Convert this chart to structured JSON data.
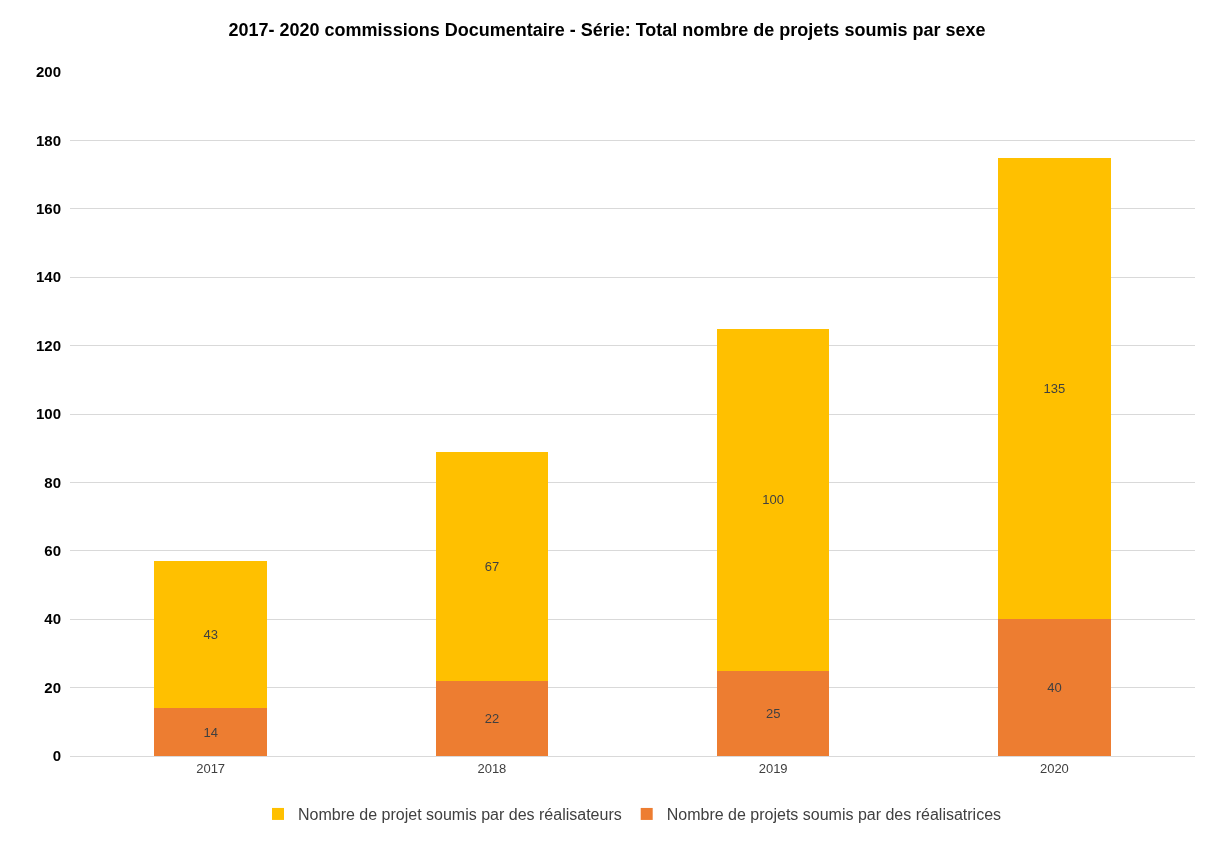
{
  "chart_data": {
    "type": "bar",
    "title": "2017- 2020 commissions Documentaire - Série: Total nombre de projets soumis par sexe",
    "categories": [
      "2017",
      "2018",
      "2019",
      "2020"
    ],
    "series": [
      {
        "name": "Nombre de projets soumis par des réalisatrices",
        "color": "#ed7d31",
        "values": [
          14,
          22,
          25,
          40
        ]
      },
      {
        "name": "Nombre de projet soumis par des réalisateurs",
        "color": "#ffc000",
        "values": [
          43,
          67,
          100,
          135
        ]
      }
    ],
    "stacked": true,
    "ylim": [
      0,
      200
    ],
    "yticks": [
      0,
      20,
      40,
      60,
      80,
      100,
      120,
      140,
      160,
      180,
      200
    ],
    "grid": "y",
    "legend": "bottom",
    "data_labels": true
  }
}
